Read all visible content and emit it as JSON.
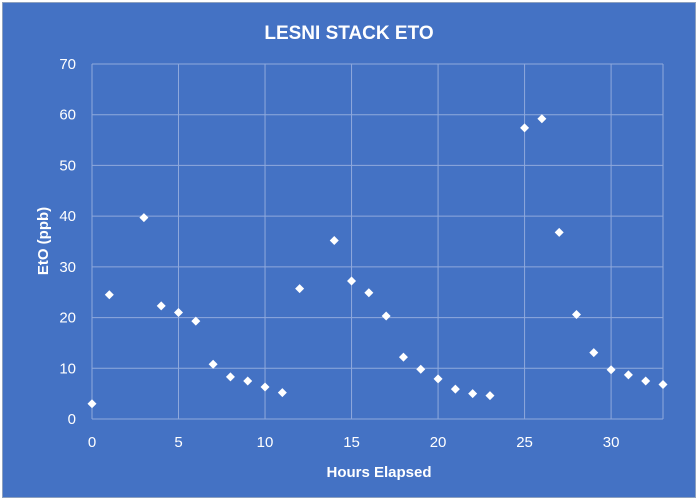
{
  "chart_data": {
    "type": "scatter",
    "title": "LESNI STACK ETO",
    "xlabel": "Hours Elapsed",
    "ylabel": "EtO (ppb)",
    "xlim": [
      0,
      33
    ],
    "ylim": [
      0,
      70
    ],
    "xticks": [
      0,
      5,
      10,
      15,
      20,
      25,
      30
    ],
    "yticks": [
      0,
      10,
      20,
      30,
      40,
      50,
      60,
      70
    ],
    "grid": true,
    "colors": {
      "background": "#4472c4",
      "marker": "#ffffff",
      "grid": "#8fa9dc"
    },
    "series": [
      {
        "x": [
          0,
          1,
          3,
          4,
          5,
          6,
          7,
          8,
          9,
          10,
          11,
          12,
          14,
          15,
          16,
          17,
          18,
          19,
          20,
          21,
          22,
          23,
          25,
          26,
          27,
          28,
          29,
          30,
          31,
          32,
          33
        ],
        "y": [
          3.0,
          24.5,
          39.7,
          22.3,
          21.0,
          19.3,
          10.8,
          8.3,
          7.5,
          6.3,
          5.2,
          25.7,
          35.2,
          27.2,
          24.9,
          20.3,
          12.2,
          9.8,
          7.9,
          5.9,
          5.0,
          4.6,
          57.4,
          59.2,
          36.8,
          20.6,
          13.1,
          9.7,
          8.7,
          7.5,
          6.8
        ]
      }
    ]
  }
}
